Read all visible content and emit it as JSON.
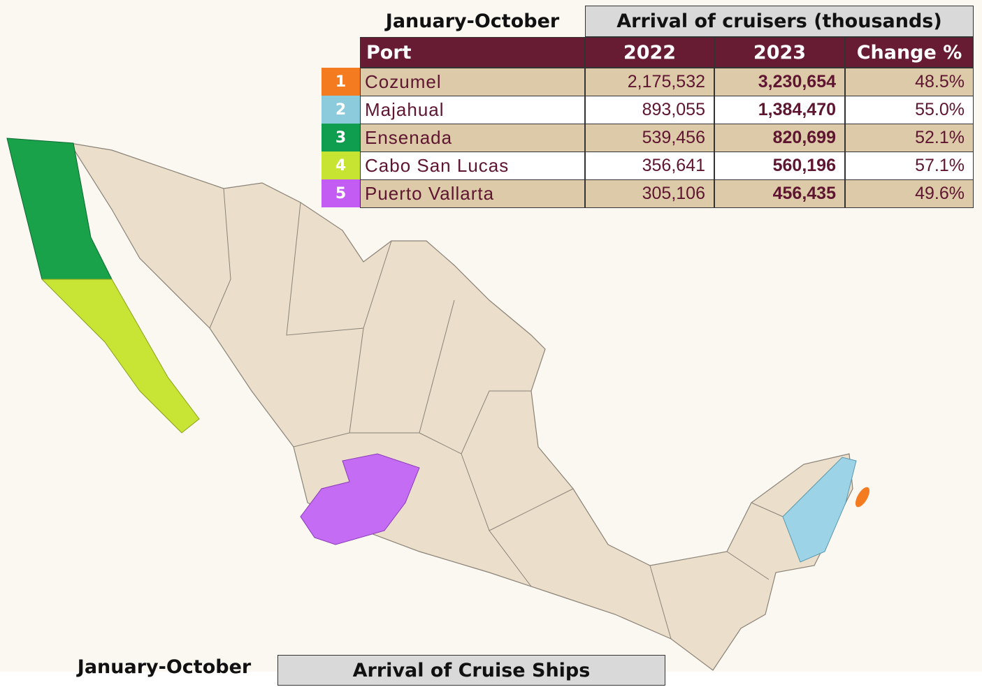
{
  "table": {
    "period": "January-October",
    "group_header": "Arrival of cruisers (thousands)",
    "columns": [
      "Port",
      "2022",
      "2023",
      "Change %"
    ],
    "rows": [
      [
        "1",
        "Cozumel",
        "2,175,532",
        "3,230,654",
        "48.5%"
      ],
      [
        "2",
        "Majahual",
        "893,055",
        "1,384,470",
        "55.0%"
      ],
      [
        "3",
        "Ensenada",
        "539,456",
        "820,699",
        "52.1%"
      ],
      [
        "4",
        "Cabo San Lucas",
        "356,641",
        "560,196",
        "57.1%"
      ],
      [
        "5",
        "Puerto Vallarta",
        "305,106",
        "456,435",
        "49.6%"
      ]
    ],
    "rank_colors": [
      "#f47b20",
      "#8ccbdc",
      "#0f9d4f",
      "#c6e431",
      "#c25cf2"
    ]
  },
  "bottom_table": {
    "period": "January-October",
    "group_header": "Arrival of Cruise Ships"
  }
}
